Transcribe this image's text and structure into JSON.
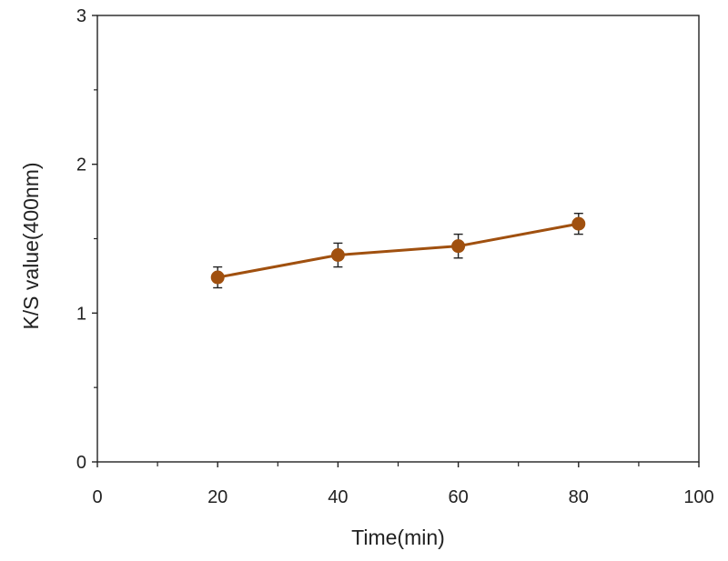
{
  "chart_data": {
    "type": "line",
    "title": "",
    "xlabel": "Time(min)",
    "ylabel": "K/S  value(400nm)",
    "xlim": [
      0,
      100
    ],
    "ylim": [
      0,
      3
    ],
    "x_ticks": [
      0,
      20,
      40,
      60,
      80,
      100
    ],
    "x_minor_ticks": [
      10,
      30,
      50,
      70,
      90
    ],
    "y_ticks": [
      0,
      1,
      2,
      3
    ],
    "y_minor_ticks": [
      0.5,
      1.5,
      2.5
    ],
    "grid": false,
    "legend": null,
    "series": [
      {
        "name": "K/S value",
        "color": "#a0500f",
        "x": [
          20,
          40,
          60,
          80
        ],
        "y": [
          1.24,
          1.39,
          1.45,
          1.6
        ],
        "error": [
          0.07,
          0.08,
          0.08,
          0.07
        ]
      }
    ],
    "colors": {
      "axis": "#222222",
      "series": "#a0500f",
      "error_bar": "#222222"
    }
  }
}
